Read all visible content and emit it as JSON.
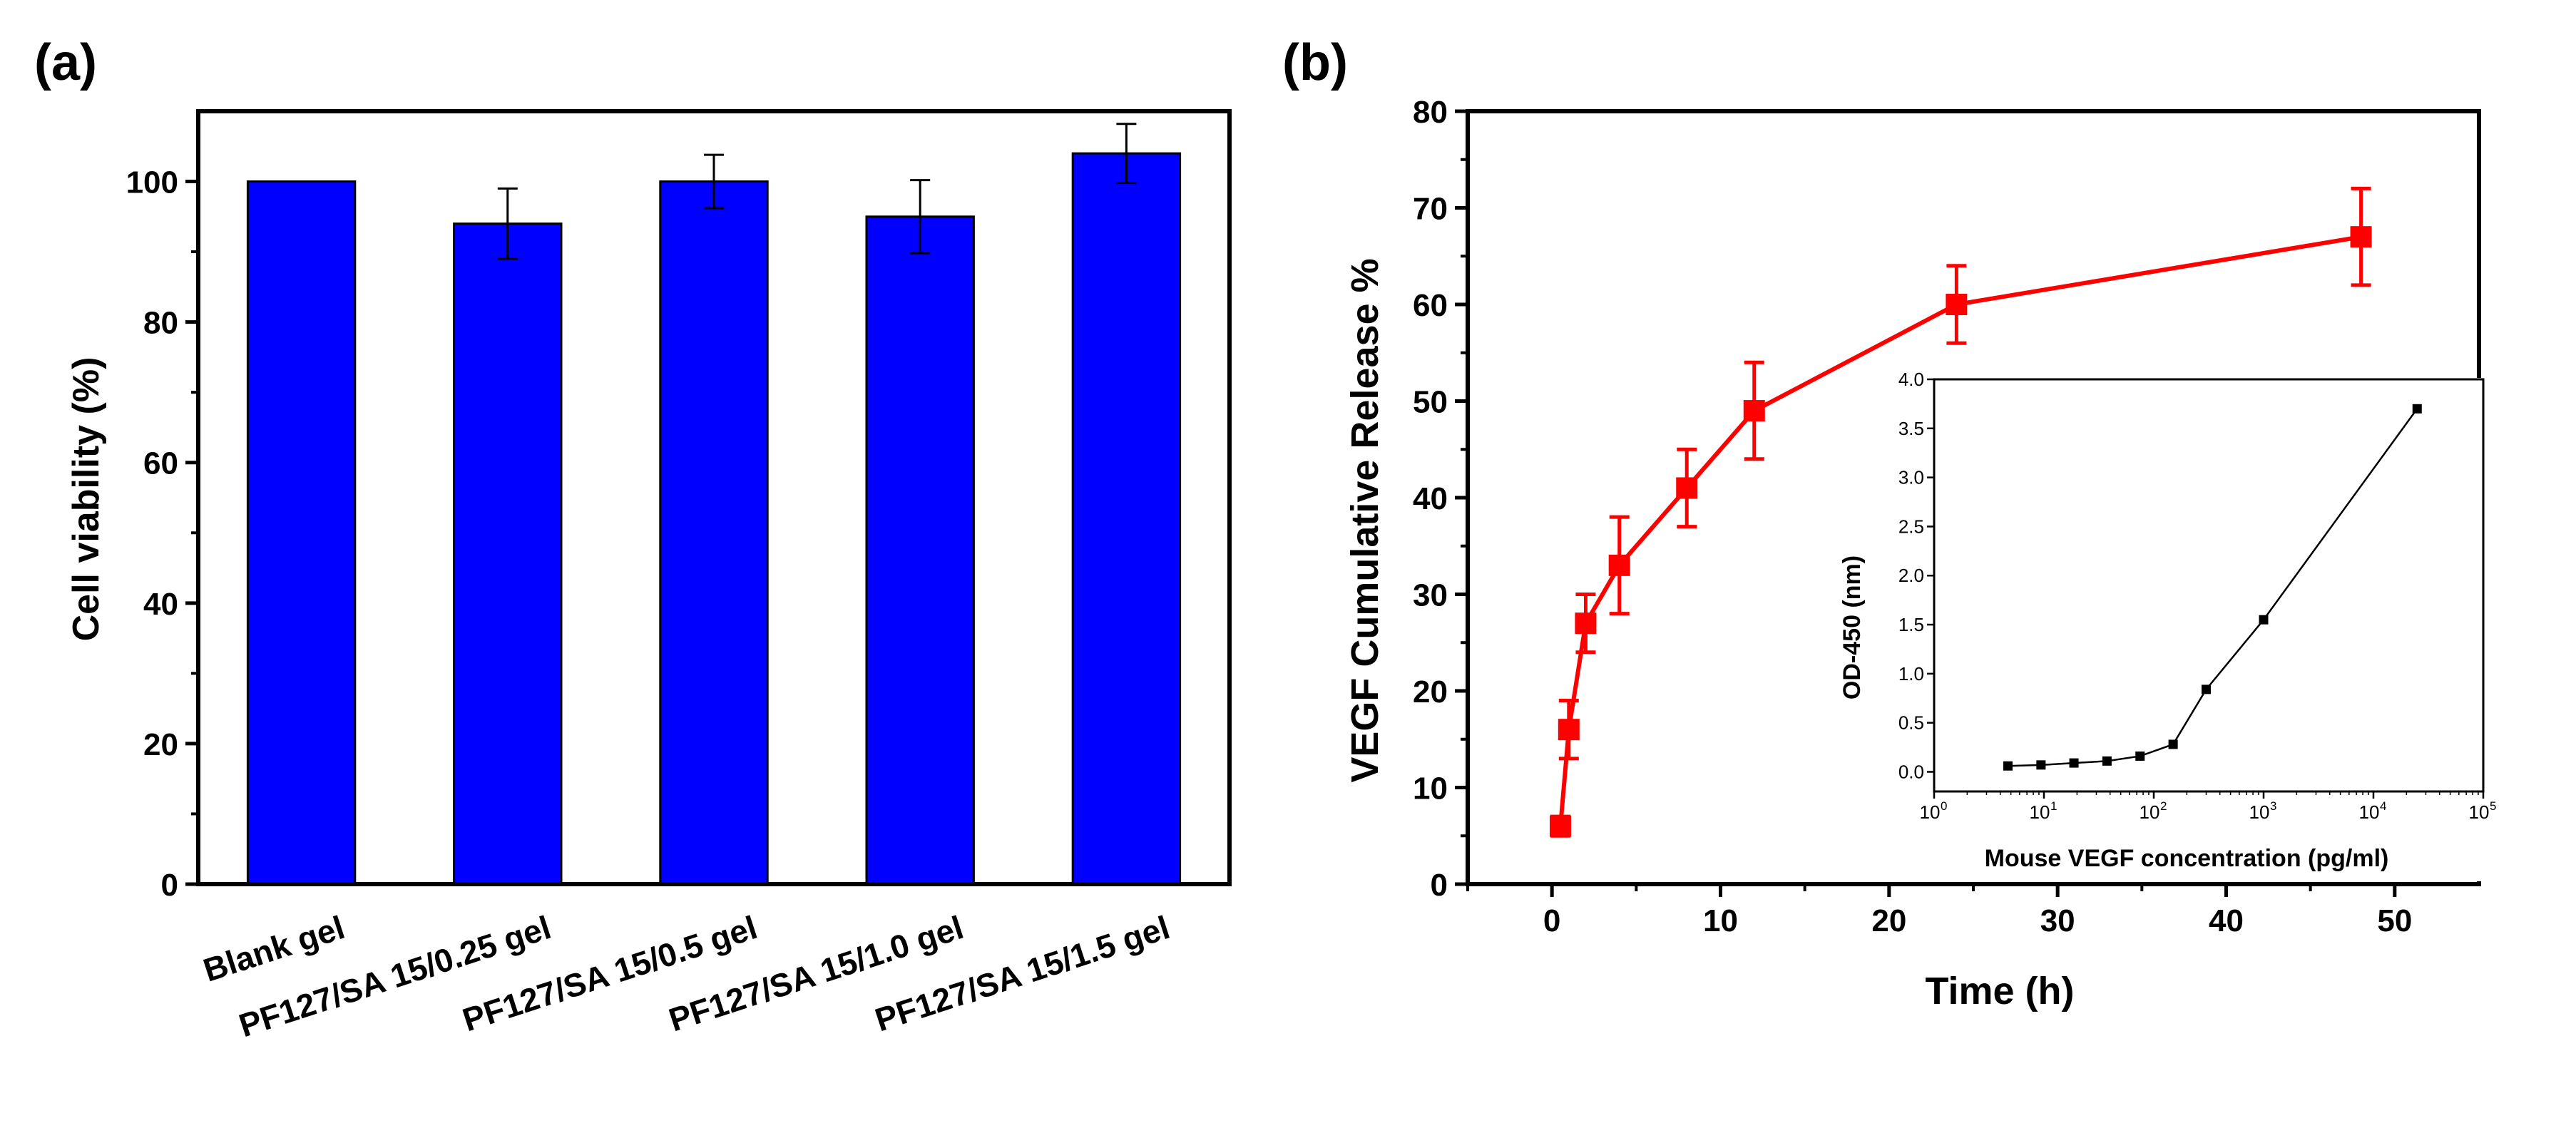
{
  "panels": {
    "a": {
      "label": "(a)",
      "chart_data": {
        "type": "bar",
        "categories": [
          "Blank gel",
          "PF127/SA 15/0.25 gel",
          "PF127/SA 15/0.5 gel",
          "PF127/SA 15/1.0 gel",
          "PF127/SA 15/1.5 gel"
        ],
        "values": [
          100,
          94,
          100,
          95,
          104
        ],
        "errors": [
          0,
          5,
          3.8,
          5.2,
          4.2
        ],
        "ylabel": "Cell viability (%)",
        "ylim": [
          0,
          110
        ],
        "yticks": [
          0,
          20,
          40,
          60,
          80,
          100
        ],
        "ytick_labels": [
          "0",
          "20",
          "40",
          "60",
          "80",
          "100"
        ],
        "bar_color": "#0000ff"
      }
    },
    "b": {
      "label": "(b)",
      "chart_data": {
        "type": "line",
        "x": [
          0.5,
          1,
          2,
          4,
          8,
          12,
          24,
          48
        ],
        "y": [
          6,
          16,
          27,
          33,
          41,
          49,
          60,
          67
        ],
        "errors": [
          1,
          3,
          3,
          5,
          4,
          5,
          4,
          5
        ],
        "xlabel": "Time (h)",
        "ylabel": "VEGF Cumulative Release %",
        "xlim": [
          -5,
          55
        ],
        "ylim": [
          0,
          80
        ],
        "xticks": [
          0,
          10,
          20,
          30,
          40,
          50
        ],
        "xtick_labels": [
          "0",
          "10",
          "20",
          "30",
          "40",
          "50"
        ],
        "yticks": [
          0,
          10,
          20,
          30,
          40,
          50,
          60,
          70,
          80
        ],
        "ytick_labels": [
          "0",
          "10",
          "20",
          "30",
          "40",
          "50",
          "60",
          "70",
          "80"
        ],
        "color": "#ff0000"
      },
      "inset": {
        "chart_data": {
          "type": "line",
          "xscale": "log",
          "x": [
            4.7,
            9.4,
            18.75,
            37.5,
            75,
            150,
            300,
            1000,
            25000
          ],
          "y": [
            0.06,
            0.07,
            0.09,
            0.11,
            0.16,
            0.28,
            0.84,
            1.55,
            3.7
          ],
          "xlabel": "Mouse VEGF concentration (pg/ml)",
          "ylabel": "OD-450 (nm)",
          "xlim": [
            1,
            100000
          ],
          "ylim": [
            -0.2,
            4.0
          ],
          "xtick_base": "10",
          "xtick_exponents": [
            "0",
            "1",
            "2",
            "3",
            "4",
            "5"
          ],
          "yticks": [
            0,
            0.5,
            1,
            1.5,
            2,
            2.5,
            3,
            3.5,
            4
          ],
          "ytick_labels": [
            "0.0",
            "0.5",
            "1.0",
            "1.5",
            "2.0",
            "2.5",
            "3.0",
            "3.5",
            "4.0"
          ],
          "color": "#000000"
        }
      }
    }
  }
}
